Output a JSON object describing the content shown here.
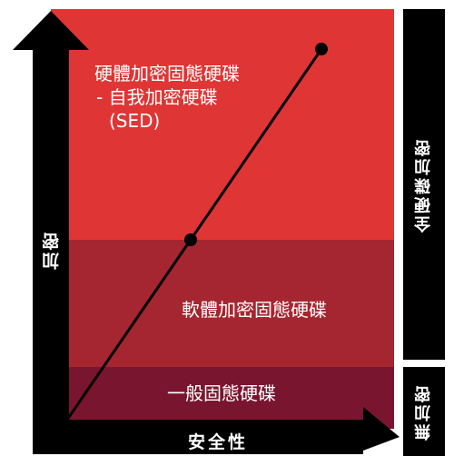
{
  "zones": {
    "top": {
      "lines": [
        "硬體加密固態硬碟",
        "- 自我加密硬碟",
        "(SED)"
      ],
      "color": "#e03535"
    },
    "middle": {
      "label": "軟體加密固態硬碟",
      "color": "#a52630"
    },
    "bottom": {
      "label": "一般固態硬碟",
      "color": "#7a1530"
    }
  },
  "side_bars": {
    "full": {
      "label": "全硬碟加密"
    },
    "none": {
      "label": "無加密"
    }
  },
  "axes": {
    "y_label": "加密",
    "x_label": "安全性"
  },
  "trend_line": {
    "points": [
      "origin",
      "software-encryption-point",
      "hardware-encryption-point"
    ]
  }
}
